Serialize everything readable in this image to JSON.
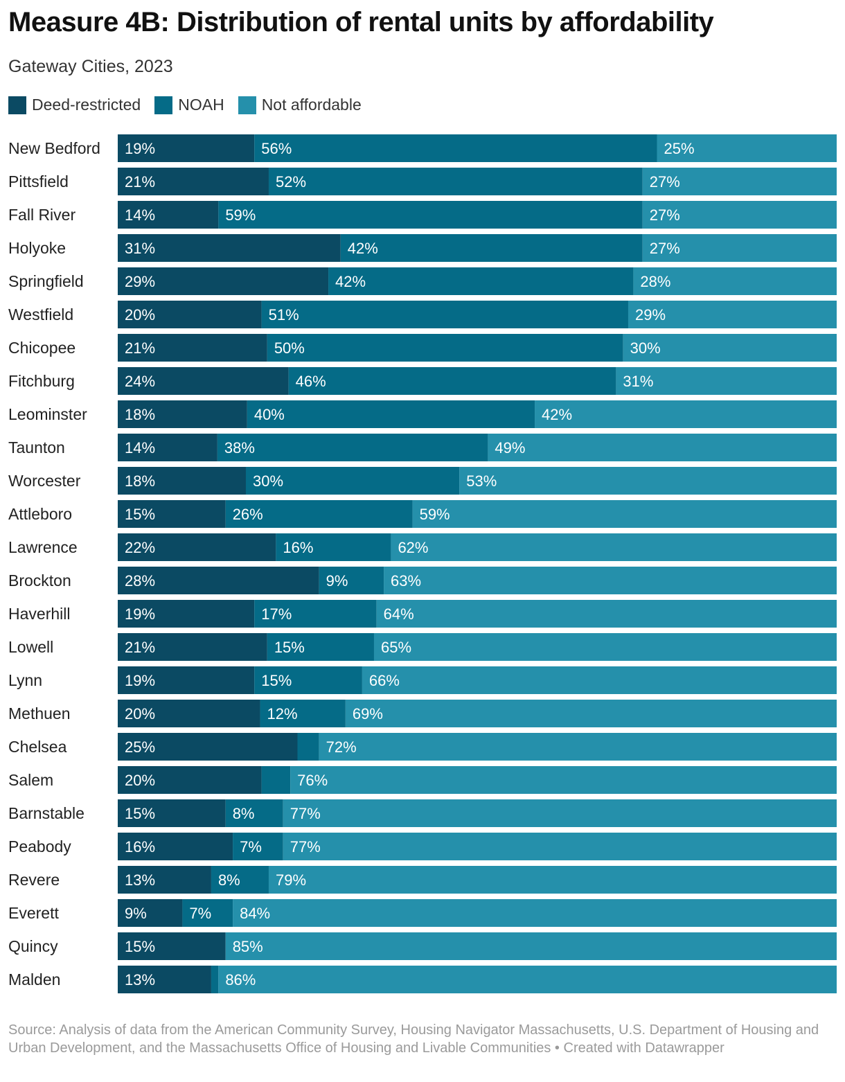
{
  "title": "Measure 4B: Distribution of rental units by affordability",
  "subtitle": "Gateway Cities, 2023",
  "source": "Source: Analysis of data from the American Community Survey, Housing Navigator Massachusetts, U.S. Department of Housing and Urban Development, and the Massachusetts Office of Housing and Livable Communities • Created with Datawrapper",
  "colors": {
    "deed_restricted": "#0b4a63",
    "noah": "#056b87",
    "not_affordable": "#2590ab"
  },
  "chart_data": {
    "type": "bar",
    "orientation": "horizontal",
    "stacked": true,
    "percent": true,
    "legend_position": "top-left",
    "grid": false,
    "xlim": [
      0,
      100
    ],
    "categories": [
      "New Bedford",
      "Pittsfield",
      "Fall River",
      "Holyoke",
      "Springfield",
      "Westfield",
      "Chicopee",
      "Fitchburg",
      "Leominster",
      "Taunton",
      "Worcester",
      "Attleboro",
      "Lawrence",
      "Brockton",
      "Haverhill",
      "Lowell",
      "Lynn",
      "Methuen",
      "Chelsea",
      "Salem",
      "Barnstable",
      "Peabody",
      "Revere",
      "Everett",
      "Quincy",
      "Malden"
    ],
    "series": [
      {
        "name": "Deed-restricted",
        "values": [
          19,
          21,
          14,
          31,
          29,
          20,
          21,
          24,
          18,
          14,
          18,
          15,
          22,
          28,
          19,
          21,
          19,
          20,
          25,
          20,
          15,
          16,
          13,
          9,
          15,
          13
        ],
        "labels": [
          "19%",
          "21%",
          "14%",
          "31%",
          "29%",
          "20%",
          "21%",
          "24%",
          "18%",
          "14%",
          "18%",
          "15%",
          "22%",
          "28%",
          "19%",
          "21%",
          "19%",
          "20%",
          "25%",
          "20%",
          "15%",
          "16%",
          "13%",
          "9%",
          "15%",
          "13%"
        ]
      },
      {
        "name": "NOAH",
        "values": [
          56,
          52,
          59,
          42,
          42,
          51,
          50,
          46,
          40,
          38,
          30,
          26,
          16,
          9,
          17,
          15,
          15,
          12,
          3,
          4,
          8,
          7,
          8,
          7,
          0,
          1
        ],
        "labels": [
          "56%",
          "52%",
          "59%",
          "42%",
          "42%",
          "51%",
          "50%",
          "46%",
          "40%",
          "38%",
          "30%",
          "26%",
          "16%",
          "9%",
          "17%",
          "15%",
          "15%",
          "12%",
          "",
          "",
          "8%",
          "7%",
          "8%",
          "7%",
          "",
          ""
        ]
      },
      {
        "name": "Not affordable",
        "values": [
          25,
          27,
          27,
          27,
          28,
          29,
          30,
          31,
          42,
          49,
          53,
          59,
          62,
          63,
          64,
          65,
          66,
          69,
          72,
          76,
          77,
          77,
          79,
          84,
          85,
          86
        ],
        "labels": [
          "25%",
          "27%",
          "27%",
          "27%",
          "28%",
          "29%",
          "30%",
          "31%",
          "42%",
          "49%",
          "53%",
          "59%",
          "62%",
          "63%",
          "64%",
          "65%",
          "66%",
          "69%",
          "72%",
          "76%",
          "77%",
          "77%",
          "79%",
          "84%",
          "85%",
          "86%"
        ]
      }
    ]
  }
}
